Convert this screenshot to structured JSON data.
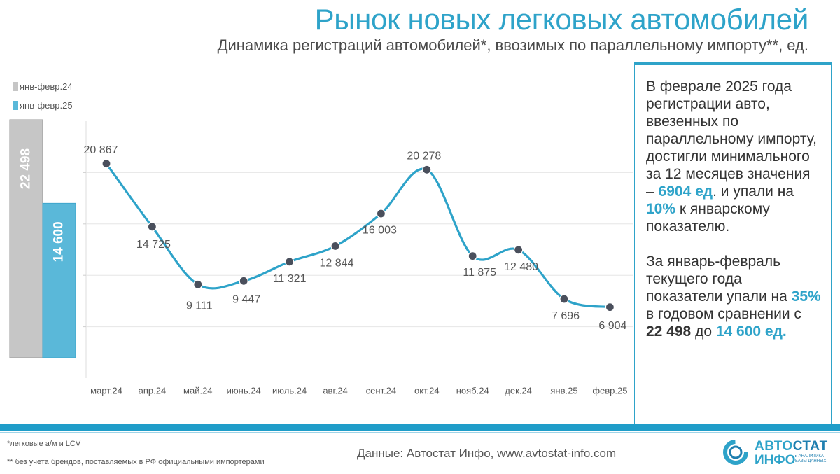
{
  "header": {
    "title": "Рынок новых легковых автомобилей",
    "subtitle": "Динамика регистраций автомобилей*, ввозимых по параллельному импорту**, ед."
  },
  "chart_data": [
    {
      "type": "bar",
      "categories": [
        "янв-февр.24",
        "янв-февр.25"
      ],
      "values": [
        22498,
        14600
      ],
      "value_labels": [
        "22 498",
        "14 600"
      ],
      "legend": [
        "янв-февр.24",
        "янв-февр.25"
      ],
      "colors": [
        "#c6c6c6",
        "#5ab8d9"
      ],
      "ylim": [
        0,
        22498
      ]
    },
    {
      "type": "line",
      "categories": [
        "март.24",
        "апр.24",
        "май.24",
        "июнь.24",
        "июль.24",
        "авг.24",
        "сент.24",
        "окт.24",
        "нояб.24",
        "дек.24",
        "янв.25",
        "февр.25"
      ],
      "values": [
        20867,
        14725,
        9111,
        9447,
        11321,
        12844,
        16003,
        20278,
        11875,
        12480,
        7696,
        6904
      ],
      "value_labels": [
        "20 867",
        "14 725",
        "9 111",
        "9 447",
        "11 321",
        "12 844",
        "16 003",
        "20 278",
        "11 875",
        "12 480",
        "7 696",
        "6 904"
      ],
      "ylim": [
        0,
        25000
      ],
      "grid": true,
      "line_color": "#2ea3c9",
      "marker_color": "#4a4f5c"
    }
  ],
  "sidebox": {
    "p1_a": "В феврале 2025 года регистрации авто, ввезенных по параллельному импорту, достигли минимального за 12 месяцев значения –",
    "p1_v1": "6904 ед",
    "p1_b": ". и упали на",
    "p1_v2": "10%",
    "p1_c": " к январскому показателю.",
    "p2_a": "За январь-февраль текущего года показатели упали на",
    "p2_v1": "35%",
    "p2_b": " в годовом сравнении с ",
    "p2_v2": "22 498",
    "p2_c": " до ",
    "p2_v3": "14 600 ед."
  },
  "footer": {
    "note1": "*легковые а/м и LCV",
    "note2": "** без учета брендов, поставляемых в РФ официальными импортерами",
    "source": "Данные: Автостат Инфо, www.avtostat-info.com"
  },
  "logo": {
    "line1a": "АВТО",
    "line1b": "СТАТ",
    "line2": "ИНФО",
    "tag1": "▸ АНАЛИТИКА",
    "tag2": "БАЗЫ ДАННЫХ"
  }
}
